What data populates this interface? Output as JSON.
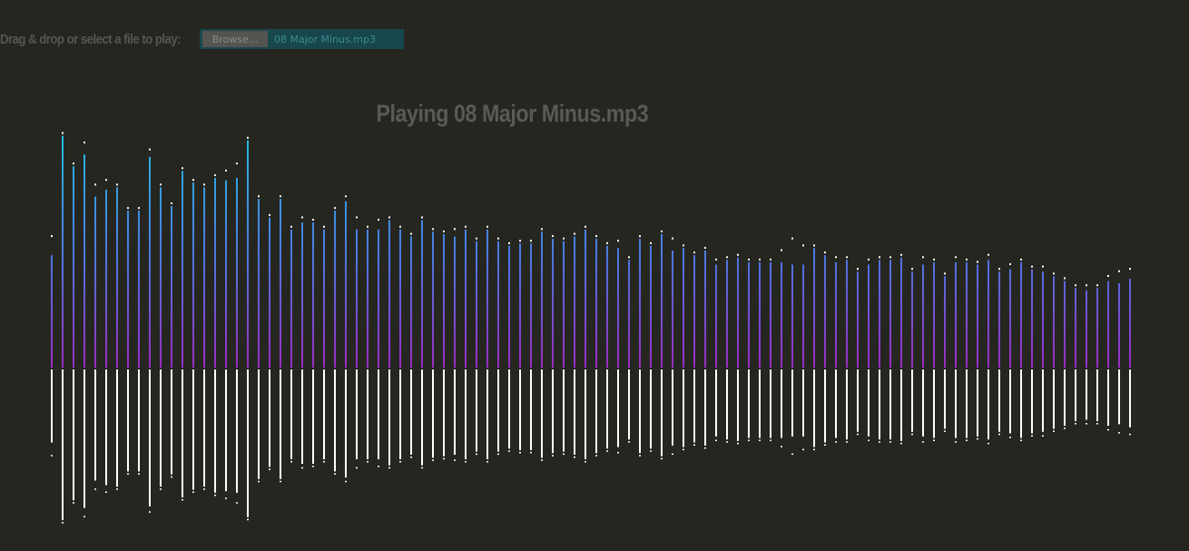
{
  "file_input": {
    "label": "Drag & drop or select a file to play:",
    "browse_label": "Browse...",
    "file_name": "08 Major Minus.mp3"
  },
  "title": "Playing 08 Major Minus.mp3",
  "colors": {
    "background": "#262621",
    "bar_top": "#22bde0",
    "bar_mid": "#4f74e0",
    "bar_bottom": "#9a2bc4",
    "mirror": "#ffffff",
    "peak_dot": "#ffffff"
  },
  "visualizer": {
    "bar_count": 100,
    "levels": [
      0.48,
      0.99,
      0.86,
      0.91,
      0.73,
      0.76,
      0.77,
      0.67,
      0.67,
      0.9,
      0.77,
      0.69,
      0.84,
      0.79,
      0.77,
      0.81,
      0.8,
      0.81,
      0.97,
      0.72,
      0.64,
      0.72,
      0.59,
      0.62,
      0.62,
      0.59,
      0.67,
      0.71,
      0.59,
      0.59,
      0.59,
      0.63,
      0.59,
      0.56,
      0.63,
      0.58,
      0.57,
      0.56,
      0.59,
      0.54,
      0.59,
      0.54,
      0.52,
      0.53,
      0.53,
      0.58,
      0.55,
      0.54,
      0.56,
      0.59,
      0.55,
      0.52,
      0.51,
      0.46,
      0.55,
      0.52,
      0.57,
      0.5,
      0.51,
      0.48,
      0.5,
      0.44,
      0.46,
      0.47,
      0.45,
      0.45,
      0.45,
      0.45,
      0.44,
      0.44,
      0.51,
      0.48,
      0.45,
      0.46,
      0.41,
      0.44,
      0.46,
      0.46,
      0.47,
      0.41,
      0.44,
      0.45,
      0.39,
      0.45,
      0.45,
      0.44,
      0.46,
      0.41,
      0.42,
      0.45,
      0.42,
      0.41,
      0.39,
      0.37,
      0.34,
      0.33,
      0.34,
      0.37,
      0.36,
      0.38
    ],
    "peaks": [
      0.55,
      0.99,
      0.86,
      0.95,
      0.77,
      0.79,
      0.77,
      0.67,
      0.67,
      0.92,
      0.77,
      0.69,
      0.84,
      0.79,
      0.77,
      0.81,
      0.83,
      0.86,
      0.97,
      0.72,
      0.64,
      0.72,
      0.59,
      0.63,
      0.62,
      0.59,
      0.67,
      0.72,
      0.63,
      0.59,
      0.62,
      0.63,
      0.59,
      0.56,
      0.63,
      0.58,
      0.57,
      0.58,
      0.59,
      0.54,
      0.59,
      0.54,
      0.52,
      0.53,
      0.53,
      0.58,
      0.55,
      0.54,
      0.56,
      0.59,
      0.55,
      0.52,
      0.53,
      0.46,
      0.55,
      0.52,
      0.57,
      0.54,
      0.51,
      0.48,
      0.5,
      0.45,
      0.46,
      0.47,
      0.45,
      0.45,
      0.45,
      0.49,
      0.54,
      0.51,
      0.51,
      0.48,
      0.46,
      0.46,
      0.41,
      0.45,
      0.46,
      0.46,
      0.47,
      0.41,
      0.46,
      0.45,
      0.39,
      0.46,
      0.45,
      0.44,
      0.47,
      0.41,
      0.43,
      0.45,
      0.42,
      0.42,
      0.39,
      0.37,
      0.34,
      0.34,
      0.34,
      0.38,
      0.4,
      0.41
    ]
  }
}
